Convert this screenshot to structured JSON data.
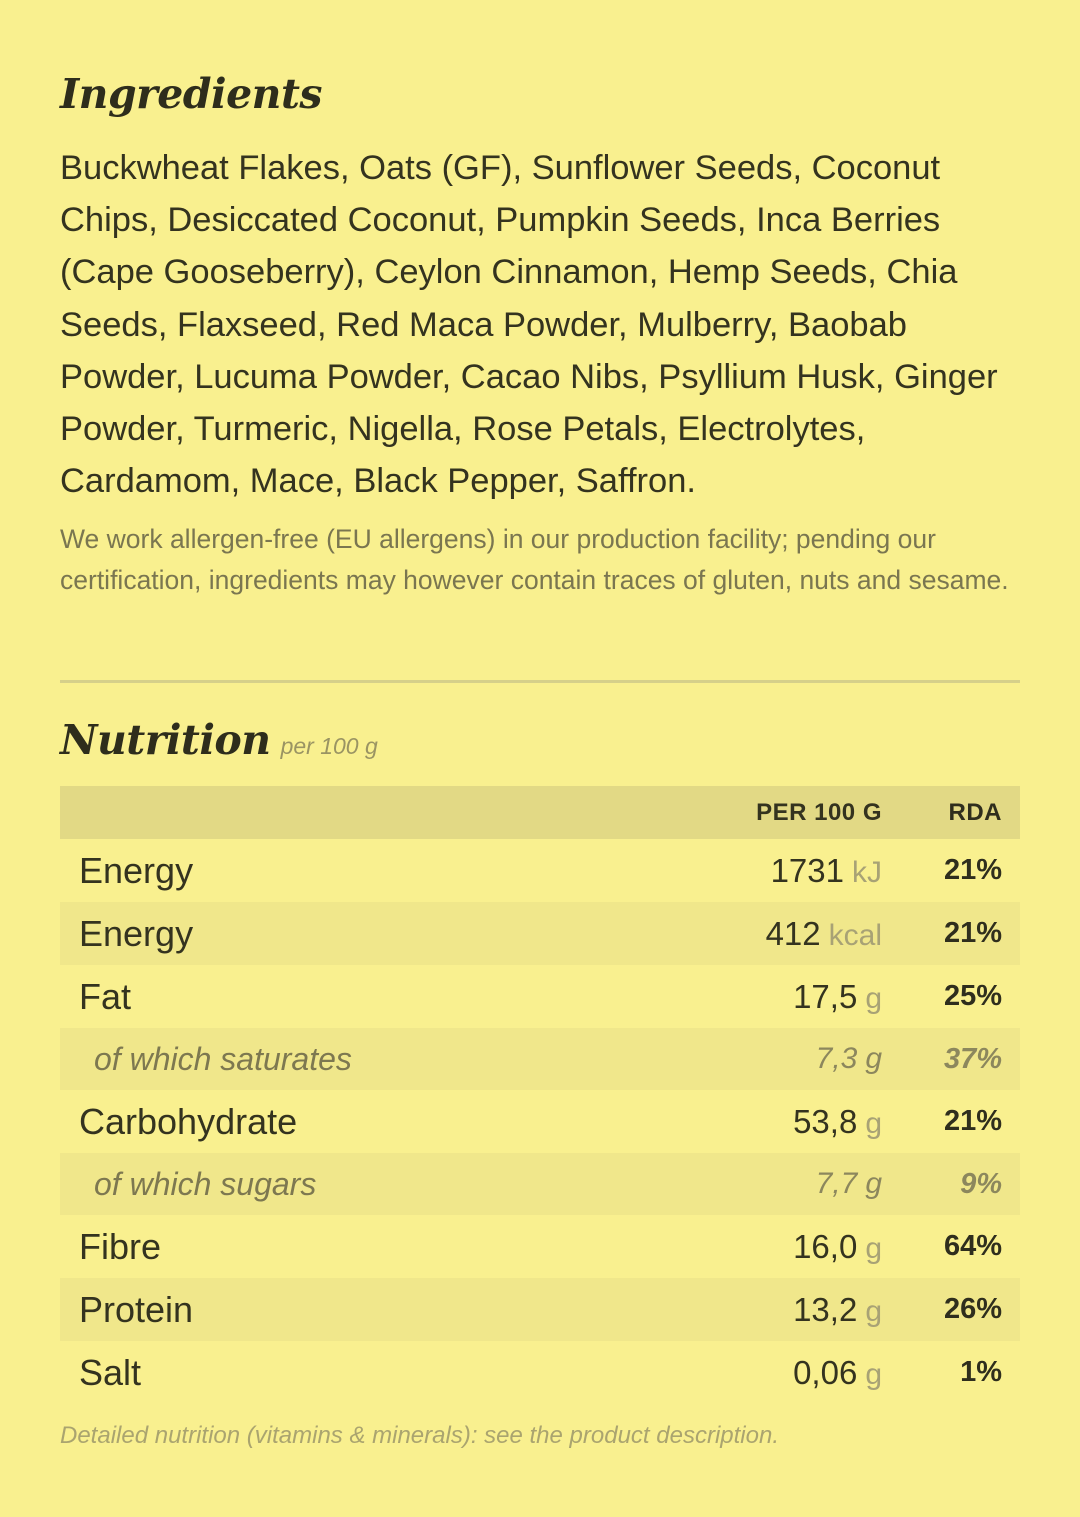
{
  "ingredients": {
    "title": "Ingredients",
    "text": "Buckwheat Flakes, Oats (GF), Sunflower Seeds, Coconut Chips, Desiccated Coconut, Pumpkin Seeds, Inca Berries (Cape Gooseberry), Ceylon Cinnamon, Hemp Seeds, Chia Seeds, Flaxseed, Red Maca Powder, Mulberry, Baobab Powder, Lucuma Powder, Cacao Nibs, Psyllium Husk, Ginger Powder, Turmeric, Nigella, Rose Petals, Electrolytes, Cardamom, Mace, Black Pepper, Saffron.",
    "allergen_note": "We work allergen-free (EU allergens) in our production facility; pending our certification, ingredients may however contain traces of gluten, nuts and sesame."
  },
  "nutrition": {
    "title": "Nutrition",
    "subtitle": "per 100 g",
    "headers": {
      "name": "",
      "per100": "PER 100 G",
      "rda": "RDA"
    },
    "rows": [
      {
        "name": "Energy",
        "value": "1731",
        "unit": "kJ",
        "rda": "21%",
        "sub": false
      },
      {
        "name": "Energy",
        "value": "412",
        "unit": "kcal",
        "rda": "21%",
        "sub": false
      },
      {
        "name": "Fat",
        "value": "17,5",
        "unit": "g",
        "rda": "25%",
        "sub": false
      },
      {
        "name": "of which saturates",
        "value": "7,3",
        "unit": "g",
        "rda": "37%",
        "sub": true
      },
      {
        "name": "Carbohydrate",
        "value": "53,8",
        "unit": "g",
        "rda": "21%",
        "sub": false
      },
      {
        "name": "of which sugars",
        "value": "7,7",
        "unit": "g",
        "rda": "9%",
        "sub": true
      },
      {
        "name": "Fibre",
        "value": "16,0",
        "unit": "g",
        "rda": "64%",
        "sub": false
      },
      {
        "name": "Protein",
        "value": "13,2",
        "unit": "g",
        "rda": "26%",
        "sub": false
      },
      {
        "name": "Salt",
        "value": "0,06",
        "unit": "g",
        "rda": "1%",
        "sub": false
      }
    ],
    "footnote": "Detailed nutrition (vitamins & minerals): see the product description."
  },
  "colors": {
    "background": "#f9f08f",
    "header_row": "#e2d985",
    "alt_row": "#f0e78b",
    "text": "#34331f",
    "muted": "#7a7650"
  }
}
